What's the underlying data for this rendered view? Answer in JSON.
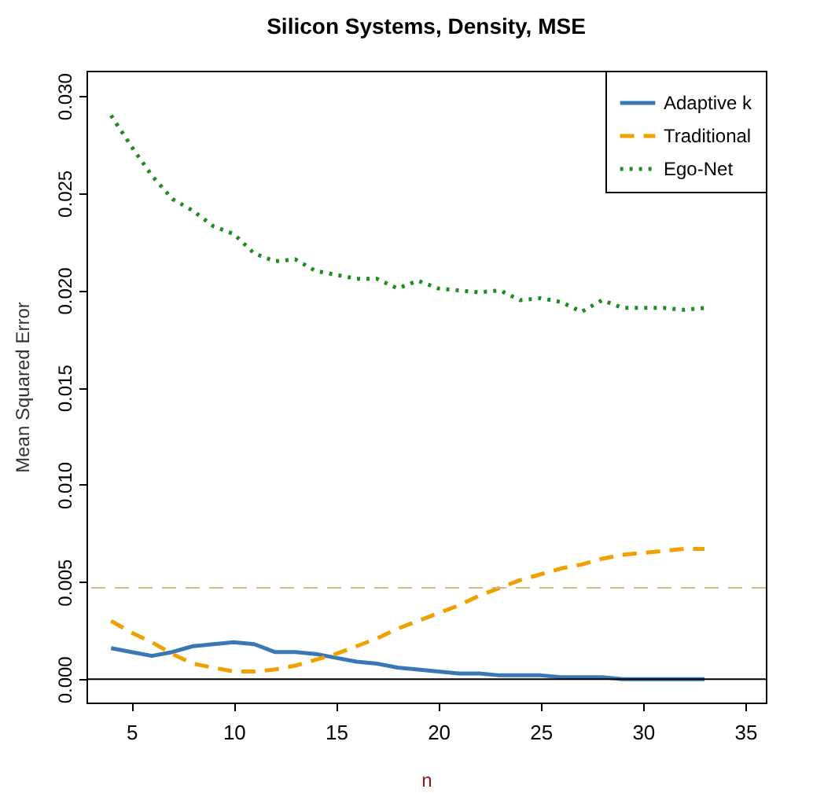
{
  "chart_data": {
    "type": "line",
    "title": "Silicon Systems, Density, MSE",
    "xlabel": "n",
    "ylabel": "Mean Squared Error",
    "x": [
      4,
      5,
      6,
      7,
      8,
      9,
      10,
      11,
      12,
      13,
      14,
      15,
      16,
      17,
      18,
      19,
      20,
      21,
      22,
      23,
      24,
      25,
      26,
      27,
      28,
      29,
      30,
      31,
      32,
      33
    ],
    "series": [
      {
        "name": "Adaptive k",
        "color": "#3a78b5",
        "line_style": "solid",
        "values": [
          0.0016,
          0.0014,
          0.0012,
          0.0014,
          0.0017,
          0.0018,
          0.0019,
          0.0018,
          0.0014,
          0.0014,
          0.0013,
          0.0011,
          0.0009,
          0.0008,
          0.0006,
          0.0005,
          0.0004,
          0.0003,
          0.0003,
          0.0002,
          0.0002,
          0.0002,
          0.0001,
          0.0001,
          0.0001,
          0,
          0,
          0,
          0,
          0
        ]
      },
      {
        "name": "Traditional",
        "color": "#f0a000",
        "line_style": "dashed",
        "values": [
          0.003,
          0.0024,
          0.0019,
          0.0013,
          0.0008,
          0.0006,
          0.0004,
          0.0004,
          0.0005,
          0.0007,
          0.001,
          0.0013,
          0.0017,
          0.0021,
          0.0026,
          0.003,
          0.0034,
          0.0038,
          0.0043,
          0.0047,
          0.0051,
          0.0054,
          0.0057,
          0.0059,
          0.0062,
          0.0064,
          0.0065,
          0.0066,
          0.0067,
          0.0067
        ]
      },
      {
        "name": "Ego-Net",
        "color": "#228b22",
        "line_style": "dotted",
        "values": [
          0.029,
          0.0274,
          0.0259,
          0.0247,
          0.0241,
          0.0233,
          0.0229,
          0.0219,
          0.0215,
          0.0216,
          0.021,
          0.0208,
          0.0206,
          0.0206,
          0.0201,
          0.0205,
          0.0201,
          0.02,
          0.0199,
          0.02,
          0.0195,
          0.0196,
          0.0194,
          0.0189,
          0.0195,
          0.0191,
          0.0191,
          0.0191,
          0.019,
          0.0191
        ]
      }
    ],
    "xlim": [
      2.8,
      36
    ],
    "xticks": [
      5,
      10,
      15,
      20,
      25,
      30,
      35
    ],
    "ylim": [
      -0.0012,
      0.0313
    ],
    "yticks": [
      {
        "value": 0,
        "label": "0.000"
      },
      {
        "value": 0.005,
        "label": "0.005"
      },
      {
        "value": 0.01,
        "label": "0.010"
      },
      {
        "value": 0.015,
        "label": "0.015"
      },
      {
        "value": 0.02,
        "label": "0.020"
      },
      {
        "value": 0.025,
        "label": "0.025"
      },
      {
        "value": 0.03,
        "label": "0.030"
      }
    ],
    "ref_lines": [
      {
        "axis": "y",
        "value": 0,
        "color": "#000000",
        "line_style": "solid"
      },
      {
        "axis": "y",
        "value": 0.0047,
        "color": "#d8b483",
        "line_style": "dashed"
      }
    ],
    "grid": false,
    "legend": "top right"
  }
}
